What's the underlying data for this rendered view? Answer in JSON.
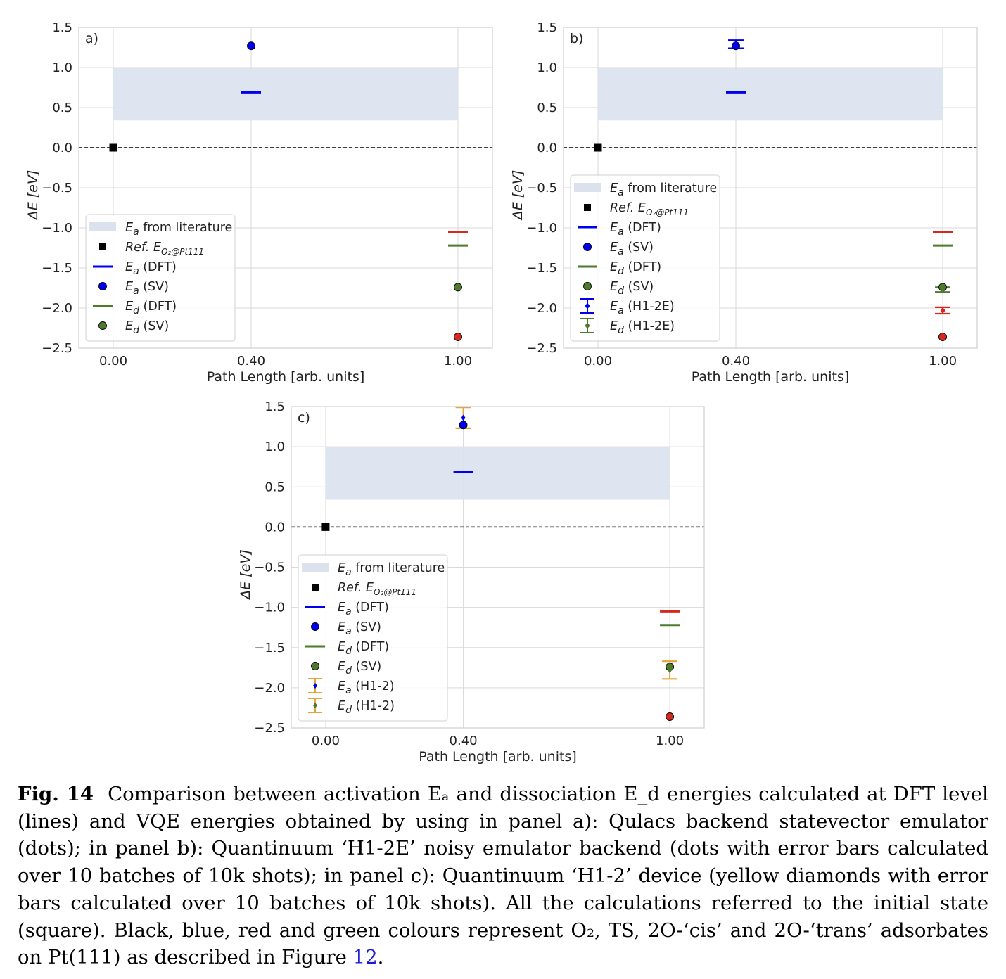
{
  "figure": {
    "colors": {
      "band": "#dbe2ee",
      "grid": "#d9d9d9",
      "ref": "#000000",
      "ts": "#0000ee",
      "cis": "#d7281f",
      "trans": "#4e7a2e",
      "device": "#e6a23c",
      "axis": "#555555"
    },
    "chart_data": [
      {
        "panel": "a)",
        "type": "scatter",
        "xlabel": "Path Length [arb. units]",
        "ylabel": "ΔE [eV]",
        "xlim": [
          -0.1,
          1.1
        ],
        "ylim": [
          -2.5,
          1.5
        ],
        "xticks": [
          0.0,
          0.4,
          1.0
        ],
        "xtick_labels": [
          "0.00",
          "0.40",
          "1.00"
        ],
        "yticks": [
          1.5,
          1.0,
          0.5,
          0.0,
          -0.5,
          -1.0,
          -1.5,
          -2.0,
          -2.5
        ],
        "ytick_labels": [
          "1.5",
          "1.0",
          "0.5",
          "0.0",
          "−0.5",
          "−1.0",
          "−1.5",
          "−2.0",
          "−2.5"
        ],
        "literature_band": {
          "x": [
            0.0,
            1.0
          ],
          "y": [
            0.34,
            1.0
          ]
        },
        "reference": {
          "x": 0.0,
          "y": 0.0
        },
        "dft": [
          {
            "x": 0.4,
            "y": 0.69,
            "color": "ts"
          },
          {
            "x": 1.0,
            "y": -1.05,
            "color": "cis"
          },
          {
            "x": 1.0,
            "y": -1.22,
            "color": "trans"
          }
        ],
        "sv": [
          {
            "x": 0.4,
            "y": 1.27,
            "color": "ts"
          },
          {
            "x": 1.0,
            "y": -1.74,
            "color": "trans"
          },
          {
            "x": 1.0,
            "y": -2.36,
            "color": "cis"
          }
        ],
        "hw": [],
        "legend": {
          "position": "lower-left",
          "entries": [
            {
              "sym": "band",
              "main": "E",
              "sub": "a",
              "rest": " from literature"
            },
            {
              "sym": "square",
              "main": "Ref. E",
              "sub": "O₂@Pt111",
              "rest": ""
            },
            {
              "sym": "line",
              "color": "ts",
              "main": "E",
              "sub": "a",
              "rest": " (DFT)"
            },
            {
              "sym": "dot",
              "color": "ts",
              "main": "E",
              "sub": "a",
              "rest": " (SV)"
            },
            {
              "sym": "line",
              "color": "trans",
              "main": "E",
              "sub": "d",
              "rest": " (DFT)"
            },
            {
              "sym": "dot",
              "color": "trans",
              "main": "E",
              "sub": "d",
              "rest": " (SV)"
            }
          ]
        }
      },
      {
        "panel": "b)",
        "type": "scatter",
        "xlabel": "Path Length [arb. units]",
        "ylabel": "ΔE [eV]",
        "xlim": [
          -0.1,
          1.1
        ],
        "ylim": [
          -2.5,
          1.5
        ],
        "xticks": [
          0.0,
          0.4,
          1.0
        ],
        "xtick_labels": [
          "0.00",
          "0.40",
          "1.00"
        ],
        "yticks": [
          1.5,
          1.0,
          0.5,
          0.0,
          -0.5,
          -1.0,
          -1.5,
          -2.0,
          -2.5
        ],
        "ytick_labels": [
          "1.5",
          "1.0",
          "0.5",
          "0.0",
          "−0.5",
          "−1.0",
          "−1.5",
          "−2.0",
          "−2.5"
        ],
        "literature_band": {
          "x": [
            0.0,
            1.0
          ],
          "y": [
            0.34,
            1.0
          ]
        },
        "reference": {
          "x": 0.0,
          "y": 0.0
        },
        "dft": [
          {
            "x": 0.4,
            "y": 0.69,
            "color": "ts"
          },
          {
            "x": 1.0,
            "y": -1.05,
            "color": "cis"
          },
          {
            "x": 1.0,
            "y": -1.22,
            "color": "trans"
          }
        ],
        "sv": [
          {
            "x": 0.4,
            "y": 1.27,
            "color": "ts"
          },
          {
            "x": 1.0,
            "y": -1.74,
            "color": "trans"
          },
          {
            "x": 1.0,
            "y": -2.36,
            "color": "cis"
          }
        ],
        "hw": [
          {
            "x": 0.4,
            "y": 1.29,
            "err": 0.05,
            "color": "ts",
            "ecolor": "ts",
            "marker": "dot"
          },
          {
            "x": 1.0,
            "y": -1.77,
            "err": 0.03,
            "color": "trans",
            "ecolor": "trans",
            "marker": "dot"
          },
          {
            "x": 1.0,
            "y": -2.03,
            "err": 0.04,
            "color": "cis",
            "ecolor": "cis",
            "marker": "dot"
          }
        ],
        "legend": {
          "position": "lower-left",
          "entries": [
            {
              "sym": "band",
              "main": "E",
              "sub": "a",
              "rest": " from literature"
            },
            {
              "sym": "square",
              "main": "Ref. E",
              "sub": "O₂@Pt111",
              "rest": ""
            },
            {
              "sym": "line",
              "color": "ts",
              "main": "E",
              "sub": "a",
              "rest": " (DFT)"
            },
            {
              "sym": "dot",
              "color": "ts",
              "main": "E",
              "sub": "a",
              "rest": " (SV)"
            },
            {
              "sym": "line",
              "color": "trans",
              "main": "E",
              "sub": "d",
              "rest": " (DFT)"
            },
            {
              "sym": "dot",
              "color": "trans",
              "main": "E",
              "sub": "d",
              "rest": " (SV)"
            },
            {
              "sym": "err",
              "color": "ts",
              "ecolor": "ts",
              "marker": "dot",
              "main": "E",
              "sub": "a",
              "rest": " (H1-2E)"
            },
            {
              "sym": "err",
              "color": "trans",
              "ecolor": "trans",
              "marker": "dot",
              "main": "E",
              "sub": "d",
              "rest": " (H1-2E)"
            }
          ]
        }
      },
      {
        "panel": "c)",
        "type": "scatter",
        "xlabel": "Path Length [arb. units]",
        "ylabel": "ΔE [eV]",
        "xlim": [
          -0.1,
          1.1
        ],
        "ylim": [
          -2.5,
          1.5
        ],
        "xticks": [
          0.0,
          0.4,
          1.0
        ],
        "xtick_labels": [
          "0.00",
          "0.40",
          "1.00"
        ],
        "yticks": [
          1.5,
          1.0,
          0.5,
          0.0,
          -0.5,
          -1.0,
          -1.5,
          -2.0,
          -2.5
        ],
        "ytick_labels": [
          "1.5",
          "1.0",
          "0.5",
          "0.0",
          "−0.5",
          "−1.0",
          "−1.5",
          "−2.0",
          "−2.5"
        ],
        "literature_band": {
          "x": [
            0.0,
            1.0
          ],
          "y": [
            0.34,
            1.0
          ]
        },
        "reference": {
          "x": 0.0,
          "y": 0.0
        },
        "dft": [
          {
            "x": 0.4,
            "y": 0.69,
            "color": "ts"
          },
          {
            "x": 1.0,
            "y": -1.05,
            "color": "cis"
          },
          {
            "x": 1.0,
            "y": -1.22,
            "color": "trans"
          }
        ],
        "sv": [
          {
            "x": 0.4,
            "y": 1.27,
            "color": "ts"
          },
          {
            "x": 1.0,
            "y": -1.74,
            "color": "trans"
          },
          {
            "x": 1.0,
            "y": -2.36,
            "color": "cis"
          }
        ],
        "hw": [
          {
            "x": 0.4,
            "y": 1.36,
            "err": 0.13,
            "color": "ts",
            "ecolor": "device",
            "marker": "diamond"
          },
          {
            "x": 1.0,
            "y": -1.78,
            "err": 0.11,
            "color": "trans",
            "ecolor": "device",
            "marker": "diamond"
          }
        ],
        "legend": {
          "position": "lower-left",
          "entries": [
            {
              "sym": "band",
              "main": "E",
              "sub": "a",
              "rest": " from literature"
            },
            {
              "sym": "square",
              "main": "Ref. E",
              "sub": "O₂@Pt111",
              "rest": ""
            },
            {
              "sym": "line",
              "color": "ts",
              "main": "E",
              "sub": "a",
              "rest": " (DFT)"
            },
            {
              "sym": "dot",
              "color": "ts",
              "main": "E",
              "sub": "a",
              "rest": " (SV)"
            },
            {
              "sym": "line",
              "color": "trans",
              "main": "E",
              "sub": "d",
              "rest": " (DFT)"
            },
            {
              "sym": "dot",
              "color": "trans",
              "main": "E",
              "sub": "d",
              "rest": " (SV)"
            },
            {
              "sym": "err",
              "color": "ts",
              "ecolor": "device",
              "marker": "diamond",
              "main": "E",
              "sub": "a",
              "rest": " (H1-2)"
            },
            {
              "sym": "err",
              "color": "trans",
              "ecolor": "device",
              "marker": "diamond",
              "main": "E",
              "sub": "d",
              "rest": " (H1-2)"
            }
          ]
        }
      }
    ]
  },
  "caption": {
    "label": "Fig. 14",
    "text": "Comparison between activation Eₐ and dissociation E_d energies calculated at DFT level (lines) and VQE energies obtained by using in panel a): Qulacs backend statevector emulator (dots); in panel b): Quantinuum ‘H1-2E’ noisy emulator backend (dots with error bars calculated over 10 batches of 10k shots); in panel c): Quantinuum ‘H1-2’ device (yellow diamonds with error bars calculated over 10 batches of 10k shots). All the calculations referred to the initial state (square). Black, blue, red and green colours represent O₂, TS, 2O-‘cis’ and 2O-‘trans’ adsorbates on Pt(111) as described in Figure",
    "figure_ref": "12",
    "end": "."
  }
}
